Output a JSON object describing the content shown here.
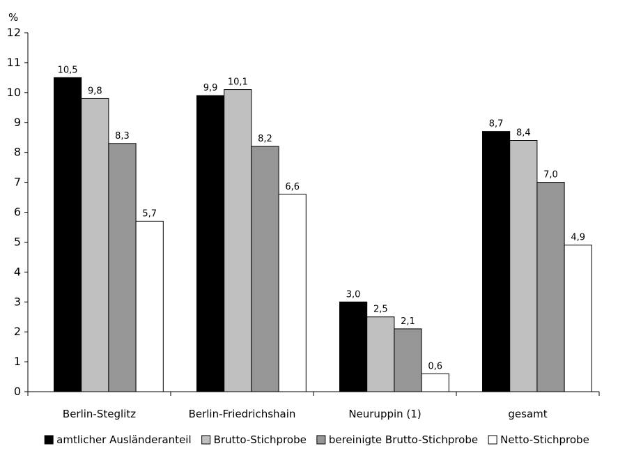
{
  "chart_data": {
    "type": "bar",
    "ylabel": "%",
    "ylim": [
      0,
      12
    ],
    "yticks": [
      "0",
      "1",
      "2",
      "3",
      "4",
      "5",
      "6",
      "7",
      "8",
      "9",
      "10",
      "11",
      "12"
    ],
    "grid": false,
    "legend_position": "bottom",
    "categories": [
      "Berlin-Steglitz",
      "Berlin-Friedrichshain",
      "Neuruppin (1)",
      "gesamt"
    ],
    "series": [
      {
        "name": "amtlicher Ausländeranteil",
        "color": "#000000",
        "values": [
          10.5,
          9.9,
          3.0,
          8.7
        ],
        "labels": [
          "10,5",
          "9,9",
          "3,0",
          "8,7"
        ]
      },
      {
        "name": "Brutto-Stichprobe",
        "color": "#c0c0c0",
        "values": [
          9.8,
          10.1,
          2.5,
          8.4
        ],
        "labels": [
          "9,8",
          "10,1",
          "2,5",
          "8,4"
        ]
      },
      {
        "name": "bereinigte Brutto-Stichprobe",
        "color": "#969696",
        "values": [
          8.3,
          8.2,
          2.1,
          7.0
        ],
        "labels": [
          "8,3",
          "8,2",
          "2,1",
          "7,0"
        ]
      },
      {
        "name": "Netto-Stichprobe",
        "color": "#ffffff",
        "values": [
          5.7,
          6.6,
          0.6,
          4.9
        ],
        "labels": [
          "5,7",
          "6,6",
          "0,6",
          "4,9"
        ]
      }
    ]
  }
}
